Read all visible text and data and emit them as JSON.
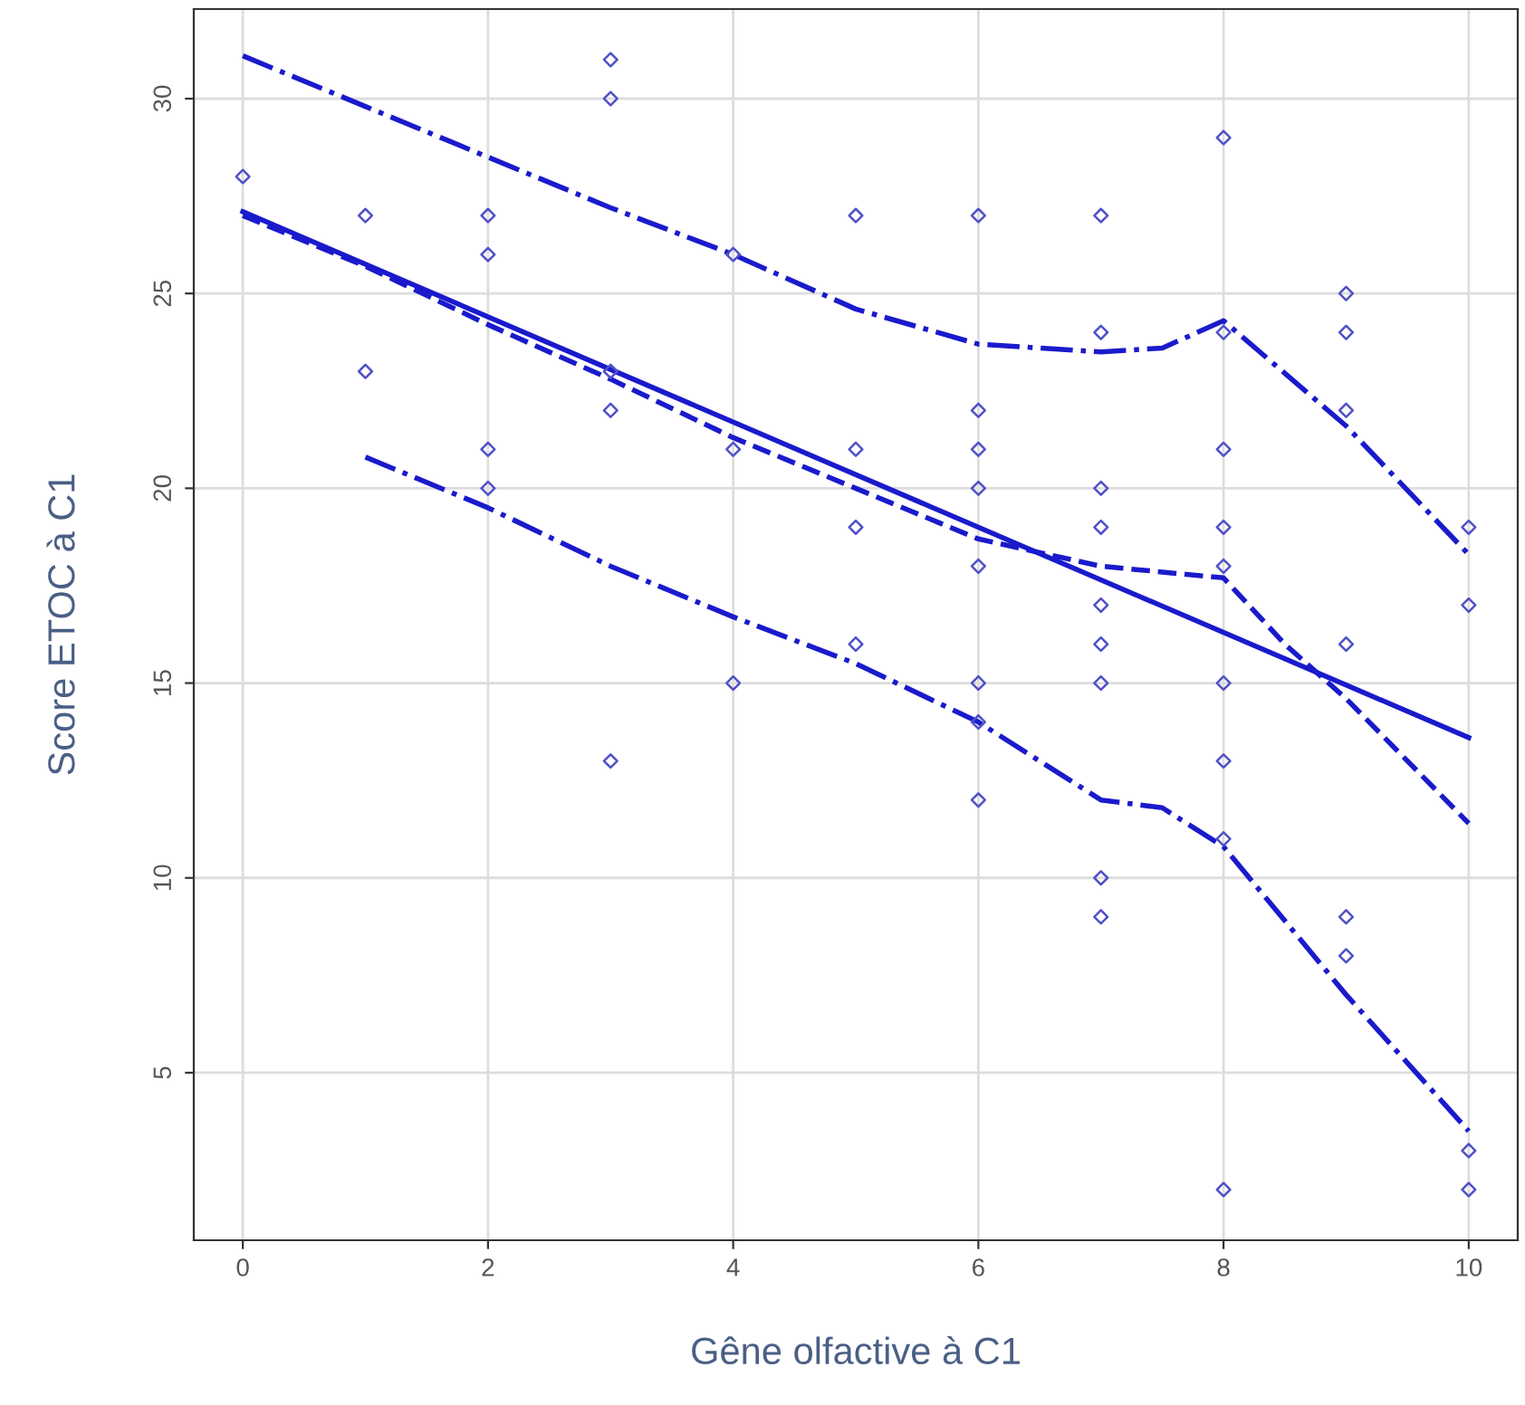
{
  "chart_data": {
    "type": "scatter",
    "xlabel": "Gêne olfactive à C1",
    "ylabel": "Score ETOC à C1",
    "xlim": [
      -0.4,
      10.4
    ],
    "ylim": [
      0.7,
      32.3
    ],
    "xticks": [
      0,
      2,
      4,
      6,
      8,
      10
    ],
    "yticks": [
      5,
      10,
      15,
      20,
      25,
      30
    ],
    "grid": true,
    "legend": false,
    "series": [
      {
        "marker": "diamond",
        "color": "#5050c8",
        "x": [
          0,
          1,
          1,
          2,
          2,
          2,
          2,
          3,
          3,
          3,
          3,
          3,
          4,
          4,
          4,
          5,
          5,
          5,
          5,
          6,
          6,
          6,
          6,
          6,
          6,
          6,
          6,
          7,
          7,
          7,
          7,
          7,
          7,
          7,
          7,
          7,
          8,
          8,
          8,
          8,
          8,
          8,
          8,
          8,
          8,
          9,
          9,
          9,
          9,
          9,
          9,
          10,
          10,
          10,
          10
        ],
        "values": [
          28,
          27,
          23,
          27,
          26,
          21,
          20,
          31,
          30,
          23,
          22,
          13,
          26,
          21,
          15,
          27,
          21,
          19,
          16,
          27,
          22,
          21,
          20,
          18,
          15,
          14,
          12,
          27,
          24,
          20,
          19,
          17,
          16,
          15,
          10,
          9,
          29,
          24,
          21,
          19,
          18,
          15,
          13,
          11,
          2,
          25,
          24,
          22,
          16,
          9,
          8,
          19,
          17,
          3,
          2
        ]
      },
      {
        "type": "line",
        "line_style": "solid",
        "color": "#1a1acc",
        "x": [
          0,
          10
        ],
        "values": [
          27.1,
          13.6
        ]
      },
      {
        "type": "line",
        "line_style": "dashed",
        "color": "#1a1acc",
        "x": [
          0,
          1,
          2,
          3,
          4,
          5,
          6,
          7,
          8,
          8.5,
          9,
          10
        ],
        "values": [
          27.0,
          25.7,
          24.2,
          22.8,
          21.3,
          20.0,
          18.7,
          18.0,
          17.7,
          16.0,
          14.6,
          11.4
        ]
      },
      {
        "type": "line",
        "line_style": "dashdot",
        "color": "#1a1acc",
        "x": [
          0,
          1,
          2,
          3,
          4,
          5,
          6,
          7,
          7.5,
          8,
          9,
          10
        ],
        "values": [
          31.1,
          29.8,
          28.5,
          27.2,
          26.0,
          24.6,
          23.7,
          23.5,
          23.6,
          24.3,
          21.6,
          18.3
        ]
      },
      {
        "type": "line",
        "line_style": "dashdot",
        "color": "#1a1acc",
        "x": [
          1,
          2,
          3,
          4,
          5,
          6,
          6.5,
          7,
          7.5,
          8,
          9,
          10
        ],
        "values": [
          20.8,
          19.5,
          18.0,
          16.7,
          15.5,
          14.0,
          13.0,
          12.0,
          11.8,
          10.8,
          7.0,
          3.5
        ]
      }
    ]
  }
}
